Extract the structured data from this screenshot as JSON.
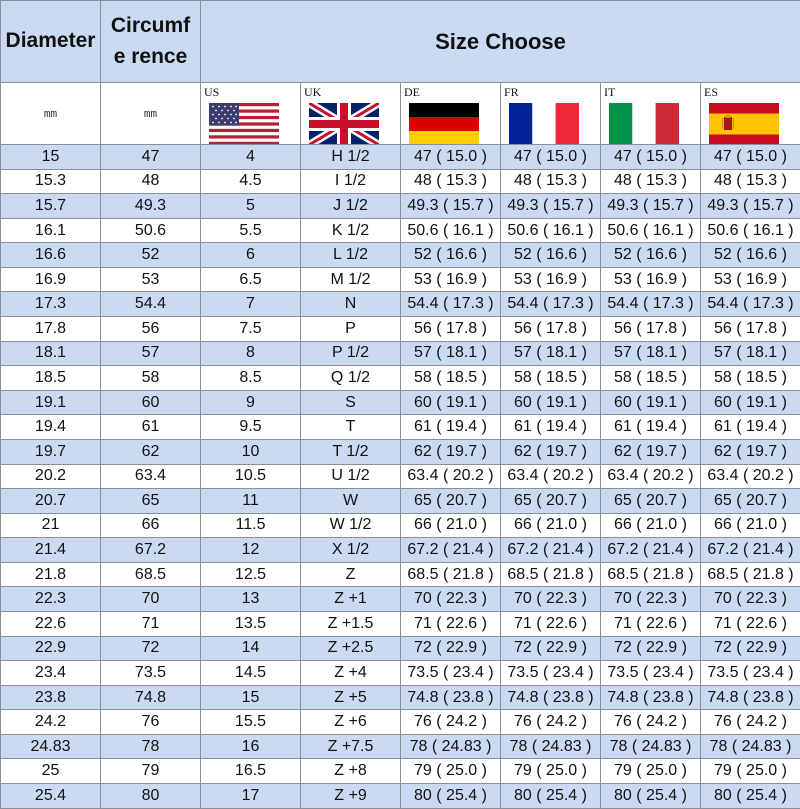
{
  "header": {
    "diameter": "Diameter",
    "circumference": "Circumfe rence",
    "size_choose": "Size Choose"
  },
  "units": {
    "diameter": "mm",
    "circumference": "mm"
  },
  "countries": [
    {
      "code": "US",
      "flag_icon": "us-flag-icon"
    },
    {
      "code": "UK",
      "flag_icon": "uk-flag-icon"
    },
    {
      "code": "DE",
      "flag_icon": "germany-flag-icon"
    },
    {
      "code": "FR",
      "flag_icon": "france-flag-icon"
    },
    {
      "code": "IT",
      "flag_icon": "italy-flag-icon"
    },
    {
      "code": "ES",
      "flag_icon": "spain-flag-icon"
    }
  ],
  "colors": {
    "band_blue": "#c9daf2",
    "white": "#ffffff",
    "border": "#8a8f97"
  },
  "rows": [
    [
      "15",
      "47",
      "4",
      "H 1/2",
      "47 ( 15.0 )",
      "47 ( 15.0 )",
      "47 ( 15.0 )",
      "47 ( 15.0 )"
    ],
    [
      "15.3",
      "48",
      "4.5",
      "I 1/2",
      "48 ( 15.3 )",
      "48 ( 15.3 )",
      "48 ( 15.3 )",
      "48 ( 15.3 )"
    ],
    [
      "15.7",
      "49.3",
      "5",
      "J 1/2",
      "49.3 ( 15.7 )",
      "49.3 ( 15.7 )",
      "49.3 ( 15.7 )",
      "49.3 ( 15.7 )"
    ],
    [
      "16.1",
      "50.6",
      "5.5",
      "K 1/2",
      "50.6 ( 16.1 )",
      "50.6 ( 16.1 )",
      "50.6 ( 16.1 )",
      "50.6 ( 16.1 )"
    ],
    [
      "16.6",
      "52",
      "6",
      "L 1/2",
      "52 ( 16.6 )",
      "52 ( 16.6 )",
      "52 ( 16.6 )",
      "52 ( 16.6 )"
    ],
    [
      "16.9",
      "53",
      "6.5",
      "M 1/2",
      "53 ( 16.9 )",
      "53 ( 16.9 )",
      "53 ( 16.9 )",
      "53 ( 16.9 )"
    ],
    [
      "17.3",
      "54.4",
      "7",
      "N",
      "54.4 ( 17.3 )",
      "54.4 ( 17.3 )",
      "54.4 ( 17.3 )",
      "54.4 ( 17.3 )"
    ],
    [
      "17.8",
      "56",
      "7.5",
      "P",
      "56 ( 17.8 )",
      "56 ( 17.8 )",
      "56 ( 17.8 )",
      "56 ( 17.8 )"
    ],
    [
      "18.1",
      "57",
      "8",
      "P 1/2",
      "57 ( 18.1 )",
      "57 ( 18.1 )",
      "57 ( 18.1 )",
      "57 ( 18.1 )"
    ],
    [
      "18.5",
      "58",
      "8.5",
      "Q 1/2",
      "58 ( 18.5 )",
      "58 ( 18.5 )",
      "58 ( 18.5 )",
      "58 ( 18.5 )"
    ],
    [
      "19.1",
      "60",
      "9",
      "S",
      "60 ( 19.1 )",
      "60 ( 19.1 )",
      "60 ( 19.1 )",
      "60 ( 19.1 )"
    ],
    [
      "19.4",
      "61",
      "9.5",
      "T",
      "61 ( 19.4 )",
      "61 ( 19.4 )",
      "61 ( 19.4 )",
      "61 ( 19.4 )"
    ],
    [
      "19.7",
      "62",
      "10",
      "T 1/2",
      "62 ( 19.7 )",
      "62 ( 19.7 )",
      "62 ( 19.7 )",
      "62 ( 19.7 )"
    ],
    [
      "20.2",
      "63.4",
      "10.5",
      "U 1/2",
      "63.4 ( 20.2 )",
      "63.4 ( 20.2 )",
      "63.4 ( 20.2 )",
      "63.4 ( 20.2 )"
    ],
    [
      "20.7",
      "65",
      "11",
      "W",
      "65 ( 20.7 )",
      "65 ( 20.7 )",
      "65 ( 20.7 )",
      "65 ( 20.7 )"
    ],
    [
      "21",
      "66",
      "11.5",
      "W 1/2",
      "66 ( 21.0 )",
      "66 ( 21.0 )",
      "66 ( 21.0 )",
      "66 ( 21.0 )"
    ],
    [
      "21.4",
      "67.2",
      "12",
      "X 1/2",
      "67.2 ( 21.4 )",
      "67.2 ( 21.4 )",
      "67.2 ( 21.4 )",
      "67.2 ( 21.4 )"
    ],
    [
      "21.8",
      "68.5",
      "12.5",
      "Z",
      "68.5 ( 21.8 )",
      "68.5 ( 21.8 )",
      "68.5 ( 21.8 )",
      "68.5 ( 21.8 )"
    ],
    [
      "22.3",
      "70",
      "13",
      "Z +1",
      "70 ( 22.3 )",
      "70 ( 22.3 )",
      "70 ( 22.3 )",
      "70 ( 22.3 )"
    ],
    [
      "22.6",
      "71",
      "13.5",
      "Z +1.5",
      "71 ( 22.6 )",
      "71 ( 22.6 )",
      "71 ( 22.6 )",
      "71 ( 22.6 )"
    ],
    [
      "22.9",
      "72",
      "14",
      "Z +2.5",
      "72 ( 22.9 )",
      "72 ( 22.9 )",
      "72 ( 22.9 )",
      "72 ( 22.9 )"
    ],
    [
      "23.4",
      "73.5",
      "14.5",
      "Z +4",
      "73.5 ( 23.4 )",
      "73.5 ( 23.4 )",
      "73.5 ( 23.4 )",
      "73.5 ( 23.4 )"
    ],
    [
      "23.8",
      "74.8",
      "15",
      "Z +5",
      "74.8 ( 23.8 )",
      "74.8 ( 23.8 )",
      "74.8 ( 23.8 )",
      "74.8 ( 23.8 )"
    ],
    [
      "24.2",
      "76",
      "15.5",
      "Z +6",
      "76 ( 24.2 )",
      "76 ( 24.2 )",
      "76 ( 24.2 )",
      "76 ( 24.2 )"
    ],
    [
      "24.83",
      "78",
      "16",
      "Z +7.5",
      "78 ( 24.83 )",
      "78 ( 24.83 )",
      "78 ( 24.83 )",
      "78 ( 24.83 )"
    ],
    [
      "25",
      "79",
      "16.5",
      "Z +8",
      "79 ( 25.0 )",
      "79 ( 25.0 )",
      "79 ( 25.0 )",
      "79 ( 25.0 )"
    ],
    [
      "25.4",
      "80",
      "17",
      "Z +9",
      "80 ( 25.4 )",
      "80 ( 25.4 )",
      "80 ( 25.4 )",
      "80 ( 25.4 )"
    ]
  ]
}
